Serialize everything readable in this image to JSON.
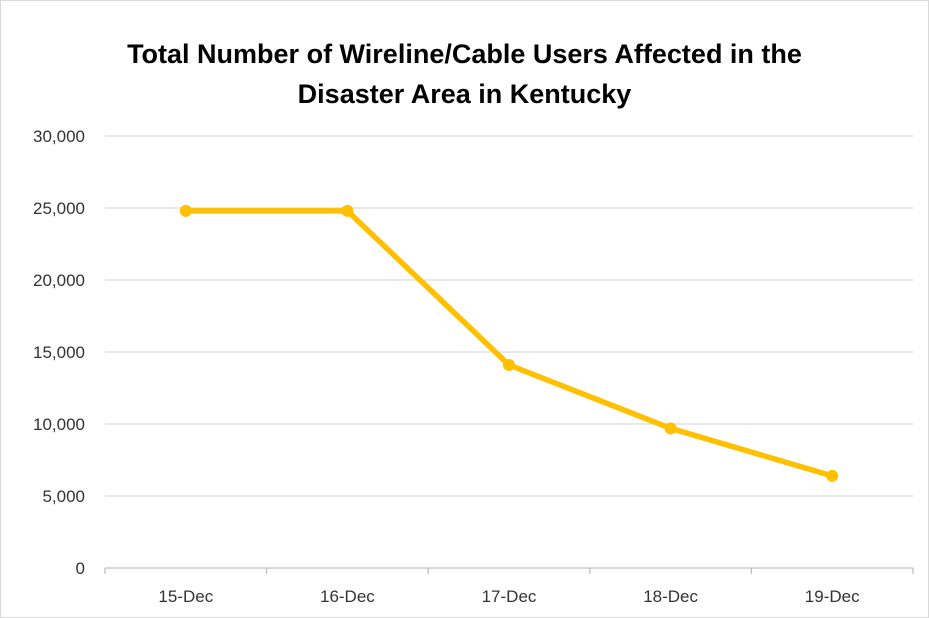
{
  "chart_data": {
    "type": "line",
    "title_lines": [
      "Total Number of Wireline/Cable Users Affected in the",
      "Disaster Area in Kentucky"
    ],
    "categories": [
      "15-Dec",
      "16-Dec",
      "17-Dec",
      "18-Dec",
      "19-Dec"
    ],
    "series": [
      {
        "values": [
          24800,
          24800,
          14100,
          9700,
          6400
        ]
      }
    ],
    "y_ticks": [
      "0",
      "5,000",
      "10,000",
      "15,000",
      "20,000",
      "25,000",
      "30,000"
    ],
    "ylim": [
      0,
      30000
    ],
    "y_tick_step": 5000,
    "grid": "horizontal",
    "legend": "none",
    "colors": {
      "line": "#FFC000",
      "grid": "#d9d9d9",
      "axis": "#bfbfbf"
    }
  }
}
